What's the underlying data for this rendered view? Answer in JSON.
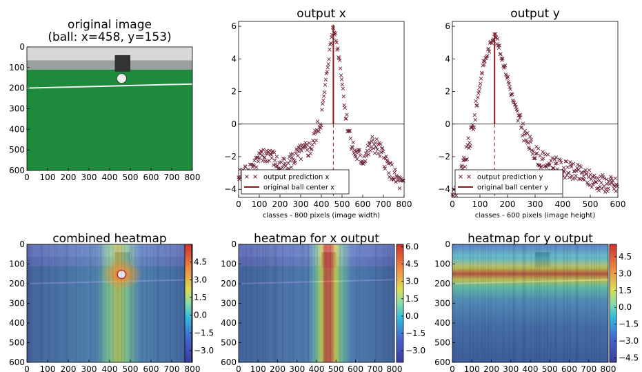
{
  "colors": {
    "series": "#6b2035",
    "center_line": "#8b1a1a",
    "field_green": "#1e8a3c",
    "wall": "#d8d8d8",
    "heat_low": "#3b4cc0",
    "heat_high": "#d62728"
  },
  "chart_data": [
    {
      "id": "original",
      "type": "image",
      "title_lines": [
        "original image",
        "(ball: x=458, y=153)"
      ],
      "xlim": [
        0,
        800
      ],
      "ylim": [
        600,
        0
      ],
      "xticks": [
        0,
        100,
        200,
        300,
        400,
        500,
        600,
        700,
        800
      ],
      "yticks": [
        0,
        100,
        200,
        300,
        400,
        500,
        600
      ],
      "ball": {
        "x": 458,
        "y": 153
      }
    },
    {
      "id": "output-x",
      "type": "scatter",
      "title": "output x",
      "xlabel": "classes - 800 pixels (image width)",
      "ylabel": "",
      "xlim": [
        0,
        800
      ],
      "ylim": [
        -4.5,
        6.3
      ],
      "xticks": [
        0,
        100,
        200,
        300,
        400,
        500,
        600,
        700,
        800
      ],
      "yticks": [
        -4,
        -2,
        0,
        2,
        4,
        6
      ],
      "grid": false,
      "legend_position": "lower-left",
      "legend": [
        "output prediction x",
        "original ball center x"
      ],
      "center": 458,
      "center_peak": 6.1,
      "profile_x": [
        0,
        50,
        100,
        150,
        200,
        250,
        300,
        350,
        400,
        430,
        458,
        490,
        520,
        560,
        600,
        650,
        680,
        720,
        760,
        800
      ],
      "profile_y": [
        -3.3,
        -2.8,
        -2.2,
        -1.8,
        -2.7,
        -2.3,
        -1.8,
        -1.5,
        0.3,
        3.5,
        6.1,
        3.8,
        0.3,
        -1.8,
        -2.2,
        -1.2,
        -1.6,
        -2.5,
        -3.4,
        -3.9
      ]
    },
    {
      "id": "output-y",
      "type": "scatter",
      "title": "output y",
      "xlabel": "classes - 600 pixels (image height)",
      "ylabel": "",
      "xlim": [
        0,
        600
      ],
      "ylim": [
        -4.5,
        6.3
      ],
      "xticks": [
        0,
        100,
        200,
        300,
        400,
        500,
        600
      ],
      "yticks": [
        -4,
        -2,
        0,
        2,
        4,
        6
      ],
      "grid": false,
      "legend_position": "lower-left",
      "legend": [
        "output prediction y",
        "original ball center y"
      ],
      "center": 153,
      "center_peak": 5.6,
      "profile_x": [
        0,
        20,
        50,
        80,
        110,
        153,
        190,
        230,
        270,
        320,
        380,
        450,
        520,
        600
      ],
      "profile_y": [
        -4.4,
        -3.8,
        -2.0,
        0.3,
        3.5,
        5.6,
        3.5,
        0.8,
        -1.0,
        -2.2,
        -2.6,
        -3.0,
        -3.5,
        -3.8
      ]
    },
    {
      "id": "combined-heatmap",
      "type": "heatmap",
      "title": "combined heatmap",
      "xlim": [
        0,
        800
      ],
      "ylim": [
        600,
        0
      ],
      "xticks": [
        0,
        100,
        200,
        300,
        400,
        500,
        600,
        700,
        800
      ],
      "yticks": [
        0,
        100,
        200,
        300,
        400,
        500,
        600
      ],
      "colorbar_ticks": [
        "4.5",
        "3.0",
        "1.5",
        "0.0",
        "−1.5",
        "−3.0"
      ],
      "colorbar_range": [
        -4.0,
        6.0
      ]
    },
    {
      "id": "heatmap-x",
      "type": "heatmap",
      "title": "heatmap for x output",
      "xlim": [
        0,
        800
      ],
      "ylim": [
        600,
        0
      ],
      "xticks": [
        0,
        100,
        200,
        300,
        400,
        500,
        600,
        700,
        800
      ],
      "yticks": [
        0,
        100,
        200,
        300,
        400,
        500,
        600
      ],
      "colorbar_ticks": [
        "6.0",
        "4.5",
        "3.0",
        "1.5",
        "0.0",
        "−1.5",
        "−3.0"
      ],
      "colorbar_range": [
        -4.0,
        6.2
      ]
    },
    {
      "id": "heatmap-y",
      "type": "heatmap",
      "title": "heatmap for y output",
      "xlim": [
        0,
        800
      ],
      "ylim": [
        600,
        0
      ],
      "xticks": [
        0,
        100,
        200,
        300,
        400,
        500,
        600,
        700,
        800
      ],
      "yticks": [
        0,
        100,
        200,
        300,
        400,
        500,
        600
      ],
      "colorbar_ticks": [
        "4.5",
        "3.0",
        "1.5",
        "0.0",
        "−1.5",
        "−3.0",
        "−4.5"
      ],
      "colorbar_range": [
        -4.9,
        5.6
      ]
    }
  ]
}
